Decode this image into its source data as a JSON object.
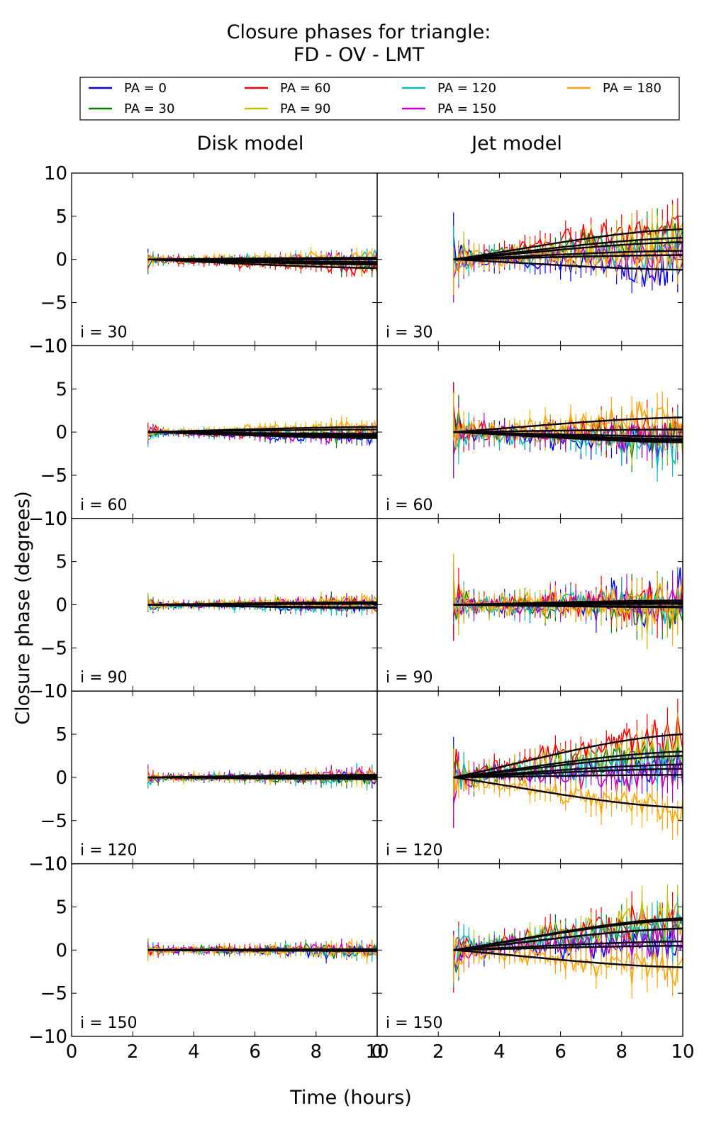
{
  "title_line1": "Closure phases for triangle:",
  "title_line2": "FD - OV - LMT",
  "xlabel": "Time (hours)",
  "ylabel": "Closure phase (degrees)",
  "column_titles": [
    "Disk model",
    "Jet model"
  ],
  "row_labels": [
    "i = 30",
    "i = 60",
    "i = 90",
    "i = 120",
    "i = 150"
  ],
  "colors": {
    "PA = 0": "#0000ff",
    "PA = 30": "#008000",
    "PA = 60": "#ff0000",
    "PA = 90": "#bfbf00",
    "PA = 120": "#00bfbf",
    "PA = 150": "#bf00bf",
    "PA = 180": "#ffa500",
    "model": "#000000"
  },
  "legend": [
    {
      "label": "PA = 0",
      "color": "#0000ff"
    },
    {
      "label": "PA = 60",
      "color": "#ff0000"
    },
    {
      "label": "PA = 120",
      "color": "#00bfbf"
    },
    {
      "label": "PA = 180",
      "color": "#ffa500"
    },
    {
      "label": "PA = 30",
      "color": "#008000"
    },
    {
      "label": "PA = 90",
      "color": "#bfbf00"
    },
    {
      "label": "PA = 150",
      "color": "#bf00bf"
    }
  ],
  "chart_data": {
    "type": "line",
    "title": "Closure phases for triangle: FD - OV - LMT",
    "xlabel": "Time (hours)",
    "ylabel": "Closure phase (degrees)",
    "xlim": [
      0,
      10
    ],
    "ylim": [
      -10,
      10
    ],
    "xticks": [
      0,
      2,
      4,
      6,
      8,
      10
    ],
    "yticks": [
      -10,
      -5,
      0,
      5,
      10
    ],
    "grid": false,
    "legend_position": "top",
    "series_names": [
      "PA = 0",
      "PA = 30",
      "PA = 60",
      "PA = 90",
      "PA = 120",
      "PA = 150",
      "PA = 180"
    ],
    "time_range": [
      2.5,
      10
    ],
    "panels": [
      {
        "row": "i = 30",
        "column": "Disk model",
        "model_end_values": {
          "PA = 0": -0.3,
          "PA = 30": -0.6,
          "PA = 60": -1.0,
          "PA = 90": -0.5,
          "PA = 120": 0.1,
          "PA = 150": 0.0,
          "PA = 180": 0.2
        }
      },
      {
        "row": "i = 30",
        "column": "Jet model",
        "model_end_values": {
          "PA = 0": -1.2,
          "PA = 30": 2.5,
          "PA = 60": 3.5,
          "PA = 90": 2.0,
          "PA = 120": 1.0,
          "PA = 150": 0.5,
          "PA = 180": 0.5
        }
      },
      {
        "row": "i = 60",
        "column": "Disk model",
        "model_end_values": {
          "PA = 0": -0.7,
          "PA = 30": -0.4,
          "PA = 60": -0.3,
          "PA = 90": 0.3,
          "PA = 120": -0.2,
          "PA = 150": -0.5,
          "PA = 180": 0.6
        }
      },
      {
        "row": "i = 60",
        "column": "Jet model",
        "model_end_values": {
          "PA = 0": -1.0,
          "PA = 30": -0.5,
          "PA = 60": 0.3,
          "PA = 90": -0.8,
          "PA = 120": -1.2,
          "PA = 150": -0.5,
          "PA = 180": 1.7
        }
      },
      {
        "row": "i = 90",
        "column": "Disk model",
        "model_end_values": {
          "PA = 0": -0.3,
          "PA = 30": 0.2,
          "PA = 60": 0.1,
          "PA = 90": 0.3,
          "PA = 120": -0.4,
          "PA = 150": 0.2,
          "PA = 180": 0.2
        }
      },
      {
        "row": "i = 90",
        "column": "Jet model",
        "model_end_values": {
          "PA = 0": 0.1,
          "PA = 30": -0.3,
          "PA = 60": 0.5,
          "PA = 90": -0.2,
          "PA = 120": 0.3,
          "PA = 150": 0.1,
          "PA = 180": 0.2
        }
      },
      {
        "row": "i = 120",
        "column": "Disk model",
        "model_end_values": {
          "PA = 0": 0.0,
          "PA = 30": -0.2,
          "PA = 60": 0.2,
          "PA = 90": -0.1,
          "PA = 120": 0.1,
          "PA = 150": 0.3,
          "PA = 180": 0.1
        }
      },
      {
        "row": "i = 120",
        "column": "Jet model",
        "model_end_values": {
          "PA = 0": 1.0,
          "PA = 30": 2.5,
          "PA = 60": 5.0,
          "PA = 90": 3.0,
          "PA = 120": 1.5,
          "PA = 150": 0.3,
          "PA = 180": -3.5
        }
      },
      {
        "row": "i = 150",
        "column": "Disk model",
        "model_end_values": {
          "PA = 0": -0.1,
          "PA = 30": 0.0,
          "PA = 60": 0.1,
          "PA = 90": -0.1,
          "PA = 120": 0.0,
          "PA = 150": 0.1,
          "PA = 180": 0.0
        }
      },
      {
        "row": "i = 150",
        "column": "Jet model",
        "model_end_values": {
          "PA = 0": 0.5,
          "PA = 30": 2.5,
          "PA = 60": 3.5,
          "PA = 90": 3.7,
          "PA = 120": 2.5,
          "PA = 150": 1.0,
          "PA = 180": -2.0
        }
      }
    ]
  }
}
